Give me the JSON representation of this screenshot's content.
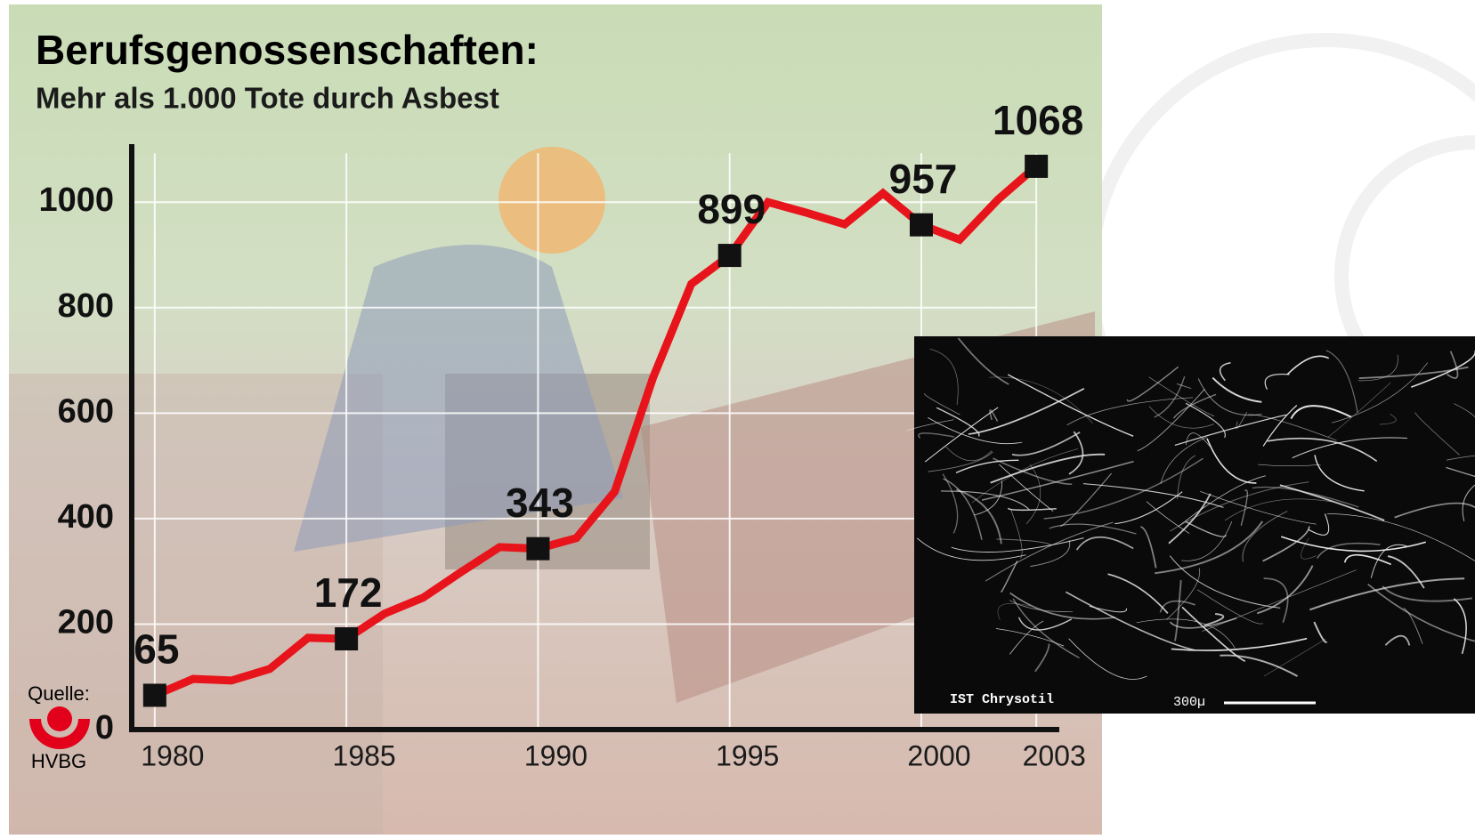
{
  "chart_data": {
    "type": "line",
    "title": "Berufsgenossenschaften:",
    "subtitle": "Mehr als 1.000 Tote durch Asbest",
    "x": [
      1980,
      1981,
      1982,
      1983,
      1984,
      1985,
      1986,
      1987,
      1988,
      1989,
      1990,
      1991,
      1992,
      1993,
      1994,
      1995,
      1996,
      1997,
      1998,
      1999,
      2000,
      2001,
      2002,
      2003
    ],
    "values": [
      65,
      96,
      93,
      115,
      174,
      172,
      220,
      250,
      299,
      346,
      343,
      363,
      451,
      667,
      845,
      899,
      1000,
      980,
      958,
      1017,
      957,
      929,
      1005,
      1068
    ],
    "color": "#e8141b",
    "xlim": [
      1979.4,
      2003.6
    ],
    "xticks": [
      1980,
      1985,
      1990,
      1995,
      2000,
      2003
    ],
    "ylim": [
      0,
      1110
    ],
    "yticks": [
      0,
      200,
      400,
      600,
      800,
      1000
    ],
    "grid": true,
    "source_label": "Quelle:",
    "source": "HVBG",
    "inset_caption": "IST Chrysotil",
    "inset_scale": "300µ"
  }
}
